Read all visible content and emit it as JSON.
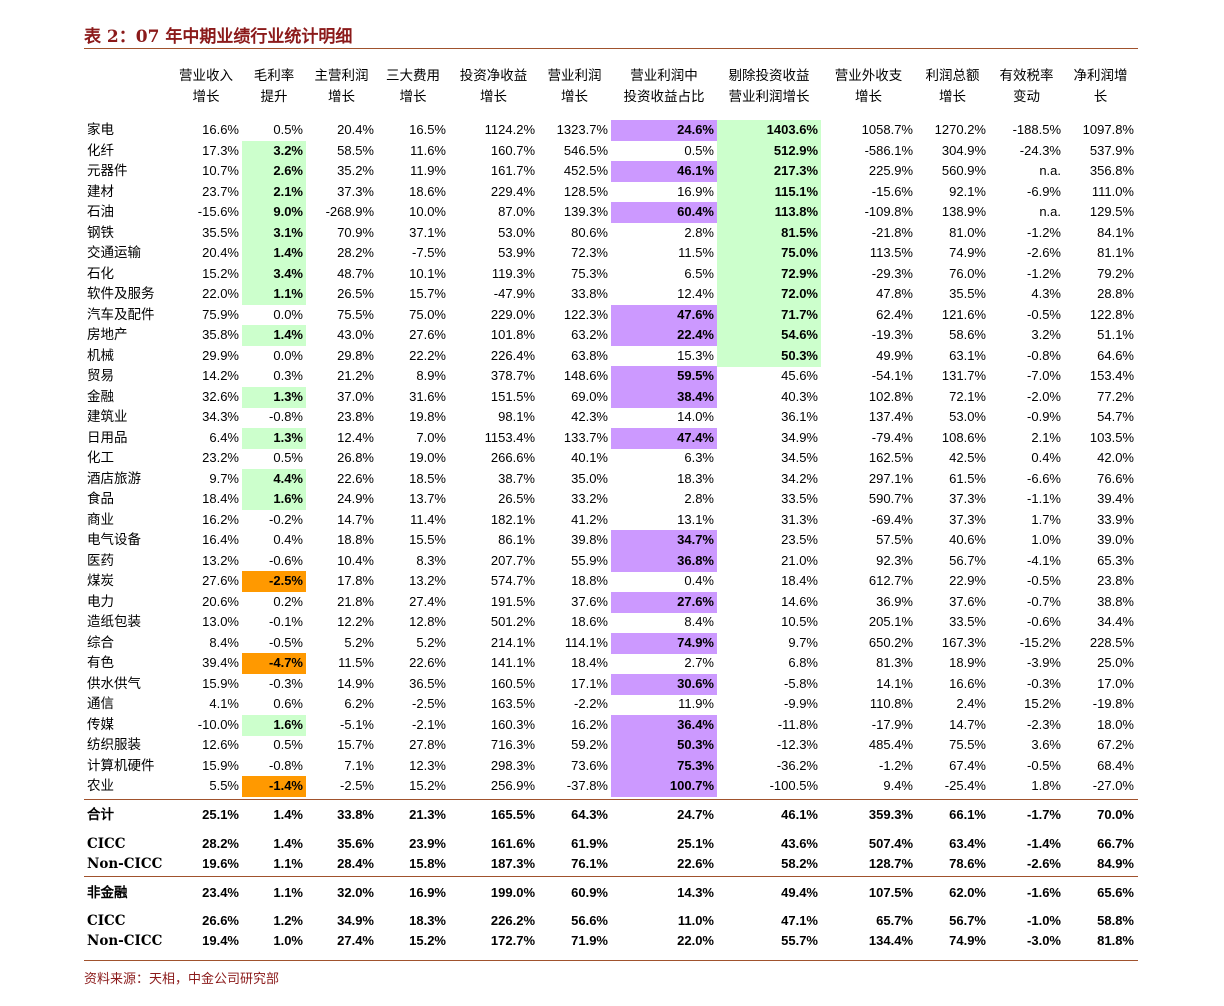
{
  "header": {
    "title": "表 2：07 年中期业绩行业统计明细"
  },
  "table": {
    "columns": [
      [
        "营业收入",
        "增长"
      ],
      [
        "毛利率",
        "提升"
      ],
      [
        "主营利润",
        "增长"
      ],
      [
        "三大费用",
        "增长"
      ],
      [
        "投资净收益",
        "增长"
      ],
      [
        "营业利润",
        "增长"
      ],
      [
        "营业利润中",
        "投资收益占比"
      ],
      [
        "剔除投资收益",
        "营业利润增长"
      ],
      [
        "营业外收支",
        "增长"
      ],
      [
        "利润总额",
        "增长"
      ],
      [
        "有效税率",
        "变动"
      ],
      [
        "净利润增",
        "长"
      ]
    ],
    "rows": [
      [
        "家电",
        "16.6%",
        "0.5%",
        "20.4%",
        "16.5%",
        "1124.2%",
        "1323.7%",
        "24.6%",
        "1403.6%",
        "1058.7%",
        "1270.2%",
        "-188.5%",
        "1097.8%"
      ],
      [
        "化纤",
        "17.3%",
        "3.2%",
        "58.5%",
        "11.6%",
        "160.7%",
        "546.5%",
        "0.5%",
        "512.9%",
        "-586.1%",
        "304.9%",
        "-24.3%",
        "537.9%"
      ],
      [
        "元器件",
        "10.7%",
        "2.6%",
        "35.2%",
        "11.9%",
        "161.7%",
        "452.5%",
        "46.1%",
        "217.3%",
        "225.9%",
        "560.9%",
        "n.a.",
        "356.8%"
      ],
      [
        "建材",
        "23.7%",
        "2.1%",
        "37.3%",
        "18.6%",
        "229.4%",
        "128.5%",
        "16.9%",
        "115.1%",
        "-15.6%",
        "92.1%",
        "-6.9%",
        "111.0%"
      ],
      [
        "石油",
        "-15.6%",
        "9.0%",
        "-268.9%",
        "10.0%",
        "87.0%",
        "139.3%",
        "60.4%",
        "113.8%",
        "-109.8%",
        "138.9%",
        "n.a.",
        "129.5%"
      ],
      [
        "钢铁",
        "35.5%",
        "3.1%",
        "70.9%",
        "37.1%",
        "53.0%",
        "80.6%",
        "2.8%",
        "81.5%",
        "-21.8%",
        "81.0%",
        "-1.2%",
        "84.1%"
      ],
      [
        "交通运输",
        "20.4%",
        "1.4%",
        "28.2%",
        "-7.5%",
        "53.9%",
        "72.3%",
        "11.5%",
        "75.0%",
        "113.5%",
        "74.9%",
        "-2.6%",
        "81.1%"
      ],
      [
        "石化",
        "15.2%",
        "3.4%",
        "48.7%",
        "10.1%",
        "119.3%",
        "75.3%",
        "6.5%",
        "72.9%",
        "-29.3%",
        "76.0%",
        "-1.2%",
        "79.2%"
      ],
      [
        "软件及服务",
        "22.0%",
        "1.1%",
        "26.5%",
        "15.7%",
        "-47.9%",
        "33.8%",
        "12.4%",
        "72.0%",
        "47.8%",
        "35.5%",
        "4.3%",
        "28.8%"
      ],
      [
        "汽车及配件",
        "75.9%",
        "0.0%",
        "75.5%",
        "75.0%",
        "229.0%",
        "122.3%",
        "47.6%",
        "71.7%",
        "62.4%",
        "121.6%",
        "-0.5%",
        "122.8%"
      ],
      [
        "房地产",
        "35.8%",
        "1.4%",
        "43.0%",
        "27.6%",
        "101.8%",
        "63.2%",
        "22.4%",
        "54.6%",
        "-19.3%",
        "58.6%",
        "3.2%",
        "51.1%"
      ],
      [
        "机械",
        "29.9%",
        "0.0%",
        "29.8%",
        "22.2%",
        "226.4%",
        "63.8%",
        "15.3%",
        "50.3%",
        "49.9%",
        "63.1%",
        "-0.8%",
        "64.6%"
      ],
      [
        "贸易",
        "14.2%",
        "0.3%",
        "21.2%",
        "8.9%",
        "378.7%",
        "148.6%",
        "59.5%",
        "45.6%",
        "-54.1%",
        "131.7%",
        "-7.0%",
        "153.4%"
      ],
      [
        "金融",
        "32.6%",
        "1.3%",
        "37.0%",
        "31.6%",
        "151.5%",
        "69.0%",
        "38.4%",
        "40.3%",
        "102.8%",
        "72.1%",
        "-2.0%",
        "77.2%"
      ],
      [
        "建筑业",
        "34.3%",
        "-0.8%",
        "23.8%",
        "19.8%",
        "98.1%",
        "42.3%",
        "14.0%",
        "36.1%",
        "137.4%",
        "53.0%",
        "-0.9%",
        "54.7%"
      ],
      [
        "日用品",
        "6.4%",
        "1.3%",
        "12.4%",
        "7.0%",
        "1153.4%",
        "133.7%",
        "47.4%",
        "34.9%",
        "-79.4%",
        "108.6%",
        "2.1%",
        "103.5%"
      ],
      [
        "化工",
        "23.2%",
        "0.5%",
        "26.8%",
        "19.0%",
        "266.6%",
        "40.1%",
        "6.3%",
        "34.5%",
        "162.5%",
        "42.5%",
        "0.4%",
        "42.0%"
      ],
      [
        "酒店旅游",
        "9.7%",
        "4.4%",
        "22.6%",
        "18.5%",
        "38.7%",
        "35.0%",
        "18.3%",
        "34.2%",
        "297.1%",
        "61.5%",
        "-6.6%",
        "76.6%"
      ],
      [
        "食品",
        "18.4%",
        "1.6%",
        "24.9%",
        "13.7%",
        "26.5%",
        "33.2%",
        "2.8%",
        "33.5%",
        "590.7%",
        "37.3%",
        "-1.1%",
        "39.4%"
      ],
      [
        "商业",
        "16.2%",
        "-0.2%",
        "14.7%",
        "11.4%",
        "182.1%",
        "41.2%",
        "13.1%",
        "31.3%",
        "-69.4%",
        "37.3%",
        "1.7%",
        "33.9%"
      ],
      [
        "电气设备",
        "16.4%",
        "0.4%",
        "18.8%",
        "15.5%",
        "86.1%",
        "39.8%",
        "34.7%",
        "23.5%",
        "57.5%",
        "40.6%",
        "1.0%",
        "39.0%"
      ],
      [
        "医药",
        "13.2%",
        "-0.6%",
        "10.4%",
        "8.3%",
        "207.7%",
        "55.9%",
        "36.8%",
        "21.0%",
        "92.3%",
        "56.7%",
        "-4.1%",
        "65.3%"
      ],
      [
        "煤炭",
        "27.6%",
        "-2.5%",
        "17.8%",
        "13.2%",
        "574.7%",
        "18.8%",
        "0.4%",
        "18.4%",
        "612.7%",
        "22.9%",
        "-0.5%",
        "23.8%"
      ],
      [
        "电力",
        "20.6%",
        "0.2%",
        "21.8%",
        "27.4%",
        "191.5%",
        "37.6%",
        "27.6%",
        "14.6%",
        "36.9%",
        "37.6%",
        "-0.7%",
        "38.8%"
      ],
      [
        "造纸包装",
        "13.0%",
        "-0.1%",
        "12.2%",
        "12.8%",
        "501.2%",
        "18.6%",
        "8.4%",
        "10.5%",
        "205.1%",
        "33.5%",
        "-0.6%",
        "34.4%"
      ],
      [
        "综合",
        "8.4%",
        "-0.5%",
        "5.2%",
        "5.2%",
        "214.1%",
        "114.1%",
        "74.9%",
        "9.7%",
        "650.2%",
        "167.3%",
        "-15.2%",
        "228.5%"
      ],
      [
        "有色",
        "39.4%",
        "-4.7%",
        "11.5%",
        "22.6%",
        "141.1%",
        "18.4%",
        "2.7%",
        "6.8%",
        "81.3%",
        "18.9%",
        "-3.9%",
        "25.0%"
      ],
      [
        "供水供气",
        "15.9%",
        "-0.3%",
        "14.9%",
        "36.5%",
        "160.5%",
        "17.1%",
        "30.6%",
        "-5.8%",
        "14.1%",
        "16.6%",
        "-0.3%",
        "17.0%"
      ],
      [
        "通信",
        "4.1%",
        "0.6%",
        "6.2%",
        "-2.5%",
        "163.5%",
        "-2.2%",
        "11.9%",
        "-9.9%",
        "110.8%",
        "2.4%",
        "15.2%",
        "-19.8%"
      ],
      [
        "传媒",
        "-10.0%",
        "1.6%",
        "-5.1%",
        "-2.1%",
        "160.3%",
        "16.2%",
        "36.4%",
        "-11.8%",
        "-17.9%",
        "14.7%",
        "-2.3%",
        "18.0%"
      ],
      [
        "纺织服装",
        "12.6%",
        "0.5%",
        "15.7%",
        "27.8%",
        "716.3%",
        "59.2%",
        "50.3%",
        "-12.3%",
        "485.4%",
        "75.5%",
        "3.6%",
        "67.2%"
      ],
      [
        "计算机硬件",
        "15.9%",
        "-0.8%",
        "7.1%",
        "12.3%",
        "298.3%",
        "73.6%",
        "75.3%",
        "-36.2%",
        "-1.2%",
        "67.4%",
        "-0.5%",
        "68.4%"
      ],
      [
        "农业",
        "5.5%",
        "-1.4%",
        "-2.5%",
        "15.2%",
        "256.9%",
        "-37.8%",
        "100.7%",
        "-100.5%",
        "9.4%",
        "-25.4%",
        "1.8%",
        "-27.0%"
      ]
    ],
    "highlight_colors": {
      "green": "#ccffcc",
      "purple": "#cc99ff",
      "orange": "#ff9900"
    },
    "highlights": {
      "green": [
        [
          0,
          8
        ],
        [
          1,
          2
        ],
        [
          1,
          8
        ],
        [
          2,
          2
        ],
        [
          2,
          8
        ],
        [
          3,
          2
        ],
        [
          3,
          8
        ],
        [
          4,
          2
        ],
        [
          4,
          8
        ],
        [
          5,
          2
        ],
        [
          5,
          8
        ],
        [
          6,
          2
        ],
        [
          6,
          8
        ],
        [
          7,
          2
        ],
        [
          7,
          8
        ],
        [
          8,
          2
        ],
        [
          8,
          8
        ],
        [
          9,
          8
        ],
        [
          10,
          2
        ],
        [
          10,
          8
        ],
        [
          11,
          8
        ],
        [
          13,
          2
        ],
        [
          15,
          2
        ],
        [
          17,
          2
        ],
        [
          18,
          2
        ],
        [
          29,
          2
        ]
      ],
      "purple": [
        [
          0,
          7
        ],
        [
          2,
          7
        ],
        [
          4,
          7
        ],
        [
          9,
          7
        ],
        [
          10,
          7
        ],
        [
          12,
          7
        ],
        [
          13,
          7
        ],
        [
          15,
          7
        ],
        [
          20,
          7
        ],
        [
          21,
          7
        ],
        [
          23,
          7
        ],
        [
          25,
          7
        ],
        [
          27,
          7
        ],
        [
          29,
          7
        ],
        [
          30,
          7
        ],
        [
          31,
          7
        ],
        [
          32,
          7
        ]
      ],
      "orange": [
        [
          22,
          2
        ],
        [
          26,
          2
        ],
        [
          32,
          2
        ]
      ]
    },
    "summary": [
      [
        "合计",
        "25.1%",
        "1.4%",
        "33.8%",
        "21.3%",
        "165.5%",
        "64.3%",
        "24.7%",
        "46.1%",
        "359.3%",
        "66.1%",
        "-1.7%",
        "70.0%"
      ],
      [
        "CICC",
        "28.2%",
        "1.4%",
        "35.6%",
        "23.9%",
        "161.6%",
        "61.9%",
        "25.1%",
        "43.6%",
        "507.4%",
        "63.4%",
        "-1.4%",
        "66.7%"
      ],
      [
        "Non-CICC",
        "19.6%",
        "1.1%",
        "28.4%",
        "15.8%",
        "187.3%",
        "76.1%",
        "22.6%",
        "58.2%",
        "128.7%",
        "78.6%",
        "-2.6%",
        "84.9%"
      ],
      [
        "非金融",
        "23.4%",
        "1.1%",
        "32.0%",
        "16.9%",
        "199.0%",
        "60.9%",
        "14.3%",
        "49.4%",
        "107.5%",
        "62.0%",
        "-1.6%",
        "65.6%"
      ],
      [
        "CICC",
        "26.6%",
        "1.2%",
        "34.9%",
        "18.3%",
        "226.2%",
        "56.6%",
        "11.0%",
        "47.1%",
        "65.7%",
        "56.7%",
        "-1.0%",
        "58.8%"
      ],
      [
        "Non-CICC",
        "19.4%",
        "1.0%",
        "27.4%",
        "15.2%",
        "172.7%",
        "71.9%",
        "22.0%",
        "55.7%",
        "134.4%",
        "74.9%",
        "-3.0%",
        "81.8%"
      ]
    ]
  },
  "footer": {
    "source": "资料来源：天相，中金公司研究部"
  }
}
